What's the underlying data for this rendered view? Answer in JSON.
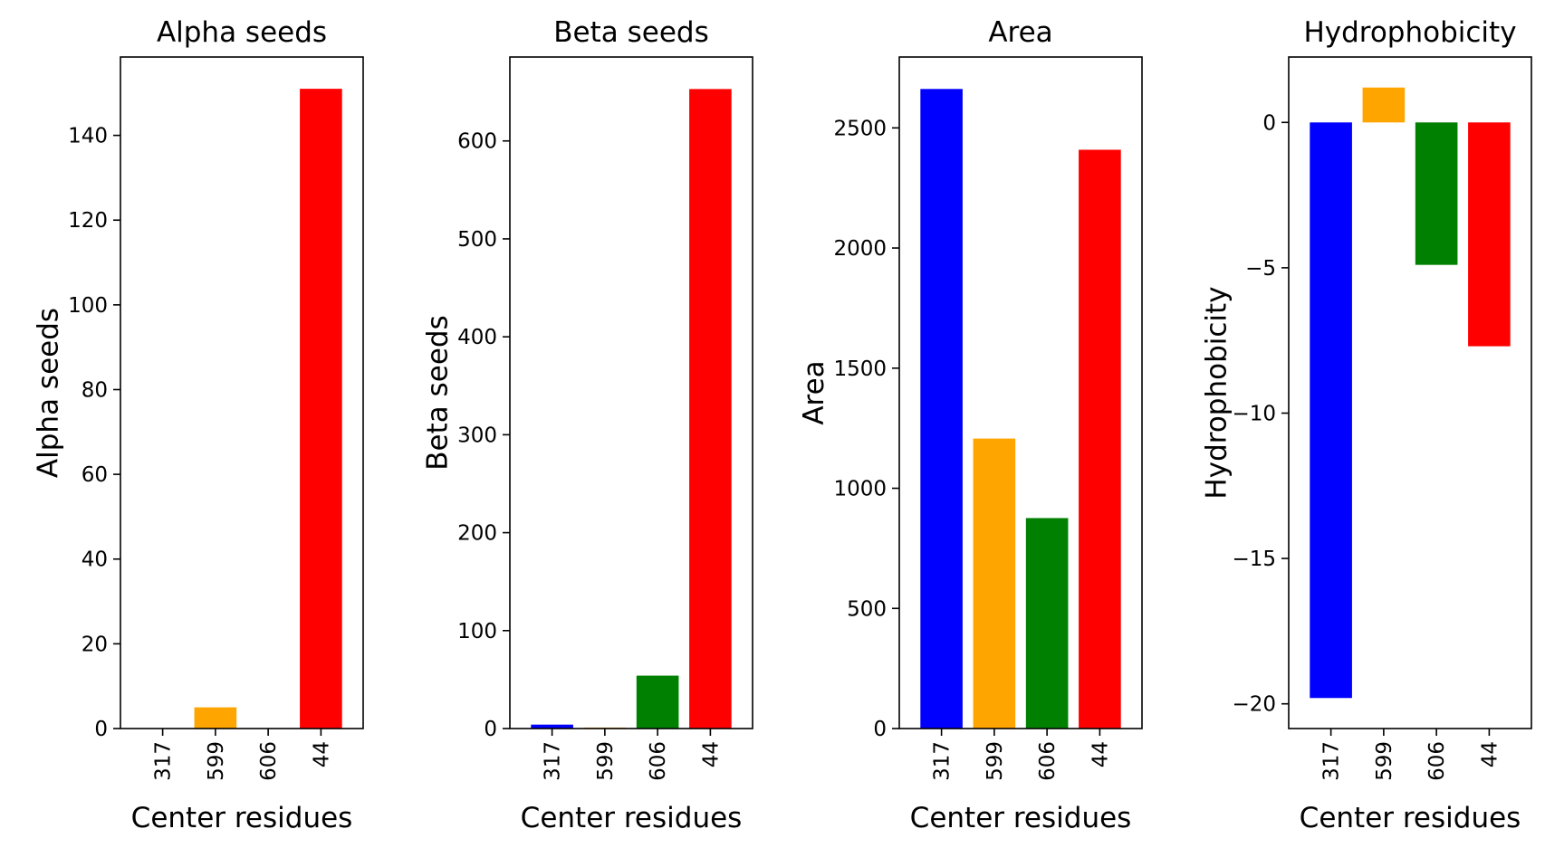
{
  "chart_data": [
    {
      "type": "bar",
      "title": "Alpha seeds",
      "xlabel": "Center residues",
      "ylabel": "Alpha seeds",
      "categories": [
        "317",
        "599",
        "606",
        "44"
      ],
      "values": [
        0,
        5,
        0,
        151
      ],
      "colors": [
        "#0000ff",
        "#ffa500",
        "#008000",
        "#ff0000"
      ],
      "ylim": [
        0,
        158.5
      ],
      "yticks": [
        0,
        20,
        40,
        60,
        80,
        100,
        120,
        140
      ],
      "ytick_labels": [
        "0",
        "20",
        "40",
        "60",
        "80",
        "100",
        "120",
        "140"
      ],
      "grid": false
    },
    {
      "type": "bar",
      "title": "Beta seeds",
      "xlabel": "Center residues",
      "ylabel": "Beta seeds",
      "categories": [
        "317",
        "599",
        "606",
        "44"
      ],
      "values": [
        4,
        1,
        54,
        653
      ],
      "colors": [
        "#0000ff",
        "#ffa500",
        "#008000",
        "#ff0000"
      ],
      "ylim": [
        0,
        685.7
      ],
      "yticks": [
        0,
        100,
        200,
        300,
        400,
        500,
        600
      ],
      "ytick_labels": [
        "0",
        "100",
        "200",
        "300",
        "400",
        "500",
        "600"
      ],
      "grid": false
    },
    {
      "type": "bar",
      "title": "Area",
      "xlabel": "Center residues",
      "ylabel": "Area",
      "categories": [
        "317",
        "599",
        "606",
        "44"
      ],
      "values": [
        2662,
        1207,
        876,
        2409
      ],
      "colors": [
        "#0000ff",
        "#ffa500",
        "#008000",
        "#ff0000"
      ],
      "ylim": [
        0,
        2795
      ],
      "yticks": [
        0,
        500,
        1000,
        1500,
        2000,
        2500
      ],
      "ytick_labels": [
        "0",
        "500",
        "1000",
        "1500",
        "2000",
        "2500"
      ],
      "grid": false
    },
    {
      "type": "bar",
      "title": "Hydrophobicity",
      "xlabel": "Center residues",
      "ylabel": "Hydrophobicity",
      "categories": [
        "317",
        "599",
        "606",
        "44"
      ],
      "values": [
        -19.8,
        1.2,
        -4.9,
        -7.7
      ],
      "colors": [
        "#0000ff",
        "#ffa500",
        "#008000",
        "#ff0000"
      ],
      "ylim": [
        -20.85,
        2.25
      ],
      "yticks": [
        -20,
        -15,
        -10,
        -5,
        0
      ],
      "ytick_labels": [
        "−20",
        "−15",
        "−10",
        "−5",
        "0"
      ],
      "grid": false
    }
  ]
}
